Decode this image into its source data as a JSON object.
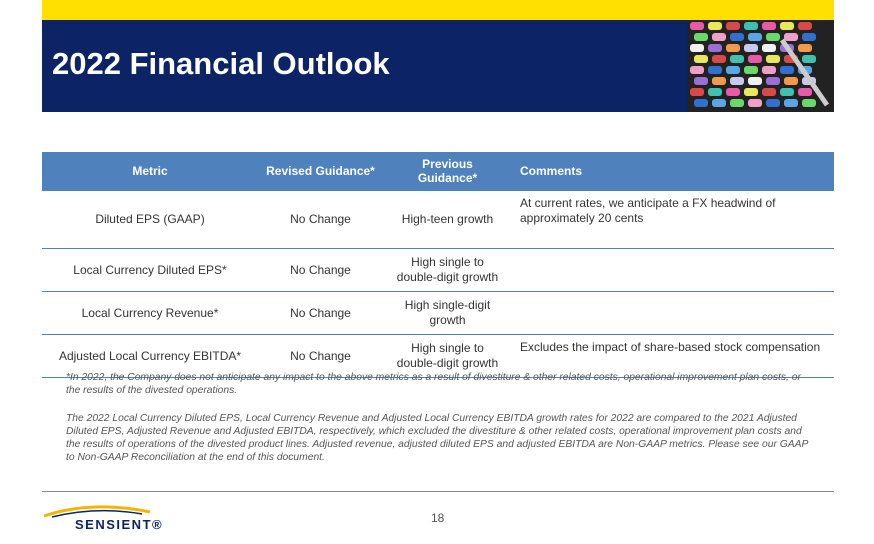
{
  "header": {
    "title": "2022 Financial Outlook"
  },
  "table": {
    "columns": [
      "Metric",
      "Revised Guidance*",
      "Previous Guidance*",
      "Comments"
    ],
    "rows": [
      [
        "Diluted EPS (GAAP)",
        "No Change",
        "High-teen growth",
        "At current rates, we anticipate a FX headwind of approximately 20 cents"
      ],
      [
        "Local Currency Diluted EPS*",
        "No Change",
        "High single to double-digit growth",
        ""
      ],
      [
        "Local Currency Revenue*",
        "No Change",
        "High single-digit growth",
        ""
      ],
      [
        "Adjusted Local Currency EBITDA*",
        "No Change",
        "High single to double-digit growth",
        "Excludes the impact of share-based stock compensation"
      ]
    ]
  },
  "footnotes": [
    "*In 2022, the Company does not anticipate any impact to the above metrics as a result of divestiture & other related costs, operational improvement plan costs, or the results of the divested operations.",
    "The 2022 Local Currency Diluted EPS, Local Currency Revenue and Adjusted Local Currency EBITDA growth rates for 2022 are compared to the 2021 Adjusted Diluted EPS, Adjusted Revenue and Adjusted EBITDA, respectively, which excluded the divestiture & other related costs, operational improvement plan costs and the results of operations of the divested product lines.  Adjusted revenue, adjusted diluted EPS and adjusted EBITDA are Non-GAAP metrics.  Please see our GAAP to Non-GAAP Reconciliation at the end of this document."
  ],
  "footer": {
    "logo": "SENSIENT®",
    "page_number": "18"
  }
}
